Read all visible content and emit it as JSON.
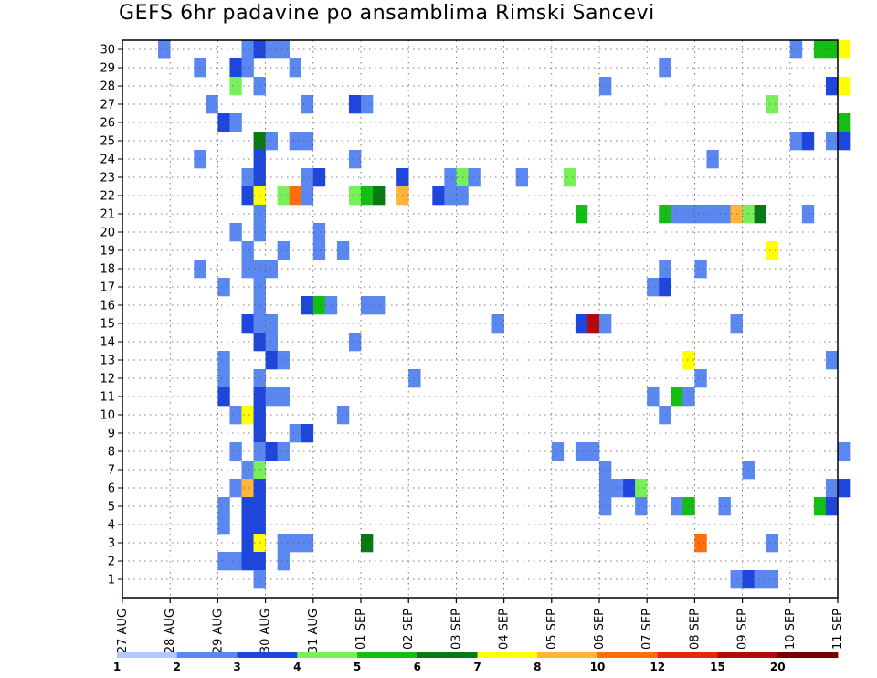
{
  "chart_data": {
    "type": "heatmap",
    "title": "GEFS 6hr padavine po ansamblima Rimski Sancevi",
    "x_ticks": [
      "27 AUG",
      "28 AUG",
      "29 AUG",
      "30 AUG",
      "31 AUG",
      "01 SEP",
      "02 SEP",
      "03 SEP",
      "04 SEP",
      "05 SEP",
      "06 SEP",
      "07 SEP",
      "08 SEP",
      "09 SEP",
      "10 SEP",
      "11 SEP"
    ],
    "y_ticks": [
      "1",
      "2",
      "3",
      "4",
      "5",
      "6",
      "7",
      "8",
      "9",
      "10",
      "11",
      "12",
      "13",
      "14",
      "15",
      "16",
      "17",
      "18",
      "19",
      "20",
      "21",
      "22",
      "23",
      "24",
      "25",
      "26",
      "27",
      "28",
      "29",
      "30"
    ],
    "x_range": [
      "27 AUG",
      "11 SEP"
    ],
    "x_step": "6hr",
    "y_range": [
      0,
      30
    ],
    "grid": true,
    "colorbar": {
      "labels": [
        "1",
        "2",
        "3",
        "4",
        "5",
        "6",
        "7",
        "8",
        "10",
        "12",
        "15",
        "20"
      ],
      "colors": [
        "#b4c8ff",
        "#5a87f0",
        "#1e46dc",
        "#78f05a",
        "#14be14",
        "#0a7814",
        "#ffff00",
        "#ffb43c",
        "#ff6e0a",
        "#e6280a",
        "#b40a0a",
        "#780000"
      ]
    },
    "cells": [
      [
        3,
        30,
        10
      ],
      [
        3,
        30,
        2
      ],
      [
        10,
        30,
        2
      ],
      [
        11,
        30,
        3
      ],
      [
        12,
        30,
        2
      ],
      [
        13,
        30,
        2
      ],
      [
        56,
        30,
        2
      ],
      [
        58,
        30,
        5
      ],
      [
        59,
        30,
        5
      ],
      [
        60,
        30,
        7
      ],
      [
        6,
        29,
        2
      ],
      [
        9,
        29,
        3
      ],
      [
        10,
        29,
        2
      ],
      [
        14,
        29,
        2
      ],
      [
        45,
        29,
        2
      ],
      [
        9,
        28,
        4
      ],
      [
        11,
        28,
        2
      ],
      [
        40,
        28,
        2
      ],
      [
        59,
        28,
        3
      ],
      [
        60,
        28,
        7
      ],
      [
        7,
        27,
        2
      ],
      [
        15,
        27,
        2
      ],
      [
        19,
        27,
        3
      ],
      [
        20,
        27,
        2
      ],
      [
        54,
        27,
        4
      ],
      [
        8,
        26,
        3
      ],
      [
        9,
        26,
        2
      ],
      [
        60,
        26,
        5
      ],
      [
        11,
        25,
        6
      ],
      [
        12,
        25,
        2
      ],
      [
        14,
        25,
        2
      ],
      [
        15,
        25,
        2
      ],
      [
        56,
        25,
        2
      ],
      [
        57,
        25,
        3
      ],
      [
        59,
        25,
        2
      ],
      [
        60,
        25,
        3
      ],
      [
        6,
        24,
        2
      ],
      [
        11,
        24,
        3
      ],
      [
        19,
        24,
        2
      ],
      [
        49,
        24,
        2
      ],
      [
        10,
        23,
        2
      ],
      [
        11,
        23,
        3
      ],
      [
        15,
        23,
        2
      ],
      [
        16,
        23,
        3
      ],
      [
        23,
        23,
        3
      ],
      [
        27,
        23,
        2
      ],
      [
        28,
        23,
        4
      ],
      [
        29,
        23,
        2
      ],
      [
        33,
        23,
        2
      ],
      [
        37,
        23,
        4
      ],
      [
        10,
        22,
        3
      ],
      [
        11,
        22,
        7
      ],
      [
        13,
        22,
        4
      ],
      [
        14,
        22,
        9
      ],
      [
        15,
        22,
        2
      ],
      [
        19,
        22,
        4
      ],
      [
        20,
        22,
        5
      ],
      [
        21,
        22,
        6
      ],
      [
        23,
        22,
        8
      ],
      [
        26,
        22,
        3
      ],
      [
        27,
        22,
        2
      ],
      [
        28,
        22,
        2
      ],
      [
        11,
        21,
        2
      ],
      [
        38,
        21,
        5
      ],
      [
        45,
        21,
        5
      ],
      [
        46,
        21,
        2
      ],
      [
        47,
        21,
        2
      ],
      [
        48,
        21,
        2
      ],
      [
        49,
        21,
        2
      ],
      [
        50,
        21,
        2
      ],
      [
        51,
        21,
        8
      ],
      [
        52,
        21,
        4
      ],
      [
        53,
        21,
        6
      ],
      [
        57,
        21,
        2
      ],
      [
        9,
        20,
        2
      ],
      [
        11,
        20,
        2
      ],
      [
        16,
        20,
        2
      ],
      [
        10,
        19,
        2
      ],
      [
        13,
        19,
        2
      ],
      [
        16,
        19,
        2
      ],
      [
        18,
        19,
        2
      ],
      [
        54,
        19,
        7
      ],
      [
        6,
        18,
        2
      ],
      [
        10,
        18,
        2
      ],
      [
        11,
        18,
        2
      ],
      [
        12,
        18,
        2
      ],
      [
        45,
        18,
        2
      ],
      [
        48,
        18,
        2
      ],
      [
        8,
        17,
        2
      ],
      [
        11,
        17,
        2
      ],
      [
        44,
        17,
        2
      ],
      [
        45,
        17,
        3
      ],
      [
        11,
        16,
        2
      ],
      [
        15,
        16,
        3
      ],
      [
        16,
        16,
        5
      ],
      [
        17,
        16,
        2
      ],
      [
        20,
        16,
        2
      ],
      [
        21,
        16,
        2
      ],
      [
        10,
        15,
        3
      ],
      [
        11,
        15,
        2
      ],
      [
        12,
        15,
        2
      ],
      [
        31,
        15,
        2
      ],
      [
        38,
        15,
        3
      ],
      [
        39,
        15,
        11
      ],
      [
        40,
        15,
        2
      ],
      [
        51,
        15,
        2
      ],
      [
        11,
        14,
        3
      ],
      [
        12,
        14,
        2
      ],
      [
        19,
        14,
        2
      ],
      [
        8,
        13,
        2
      ],
      [
        12,
        13,
        3
      ],
      [
        13,
        13,
        2
      ],
      [
        47,
        13,
        7
      ],
      [
        59,
        13,
        2
      ],
      [
        8,
        12,
        2
      ],
      [
        11,
        12,
        2
      ],
      [
        24,
        12,
        2
      ],
      [
        48,
        12,
        2
      ],
      [
        8,
        11,
        3
      ],
      [
        11,
        11,
        3
      ],
      [
        12,
        11,
        2
      ],
      [
        13,
        11,
        2
      ],
      [
        44,
        11,
        2
      ],
      [
        46,
        11,
        5
      ],
      [
        47,
        11,
        2
      ],
      [
        9,
        10,
        2
      ],
      [
        10,
        10,
        7
      ],
      [
        11,
        10,
        3
      ],
      [
        18,
        10,
        2
      ],
      [
        45,
        10,
        2
      ],
      [
        11,
        9,
        3
      ],
      [
        14,
        9,
        2
      ],
      [
        15,
        9,
        3
      ],
      [
        9,
        8,
        2
      ],
      [
        11,
        8,
        2
      ],
      [
        12,
        8,
        3
      ],
      [
        13,
        8,
        2
      ],
      [
        36,
        8,
        2
      ],
      [
        38,
        8,
        2
      ],
      [
        39,
        8,
        2
      ],
      [
        60,
        8,
        2
      ],
      [
        10,
        7,
        2
      ],
      [
        11,
        7,
        4
      ],
      [
        40,
        7,
        2
      ],
      [
        52,
        7,
        2
      ],
      [
        9,
        6,
        2
      ],
      [
        10,
        6,
        8
      ],
      [
        11,
        6,
        3
      ],
      [
        40,
        6,
        2
      ],
      [
        41,
        6,
        2
      ],
      [
        42,
        6,
        3
      ],
      [
        43,
        6,
        4
      ],
      [
        59,
        6,
        2
      ],
      [
        60,
        6,
        3
      ],
      [
        8,
        5,
        2
      ],
      [
        10,
        5,
        3
      ],
      [
        11,
        5,
        3
      ],
      [
        40,
        5,
        2
      ],
      [
        43,
        5,
        2
      ],
      [
        46,
        5,
        2
      ],
      [
        47,
        5,
        5
      ],
      [
        50,
        5,
        2
      ],
      [
        58,
        5,
        5
      ],
      [
        59,
        5,
        3
      ],
      [
        8,
        4,
        2
      ],
      [
        10,
        4,
        3
      ],
      [
        11,
        4,
        3
      ],
      [
        10,
        3,
        3
      ],
      [
        11,
        3,
        7
      ],
      [
        13,
        3,
        2
      ],
      [
        14,
        3,
        2
      ],
      [
        15,
        3,
        2
      ],
      [
        20,
        3,
        6
      ],
      [
        48,
        3,
        9
      ],
      [
        54,
        3,
        2
      ],
      [
        8,
        2,
        2
      ],
      [
        9,
        2,
        2
      ],
      [
        10,
        2,
        3
      ],
      [
        11,
        2,
        3
      ],
      [
        13,
        2,
        2
      ],
      [
        11,
        1,
        2
      ],
      [
        51,
        1,
        2
      ],
      [
        52,
        1,
        3
      ],
      [
        53,
        1,
        2
      ],
      [
        54,
        1,
        2
      ]
    ]
  }
}
